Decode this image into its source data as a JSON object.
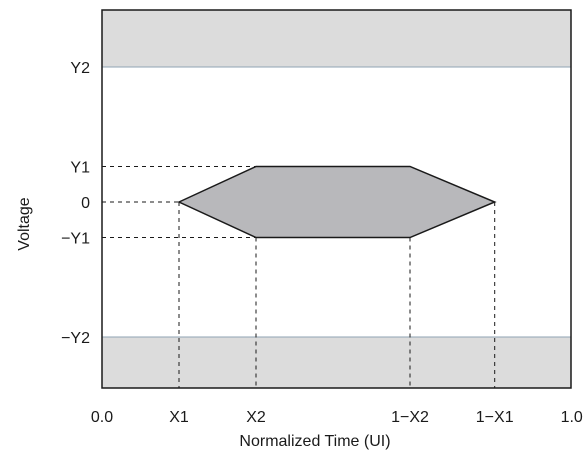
{
  "diagram": {
    "colors": {
      "frame": "#1a1a1a",
      "forbidden_band": "#dcdcdc",
      "band_edge": "#8fa3b3",
      "eye_mask": "#b8b8bb",
      "text": "#1a1a1a"
    },
    "axes": {
      "x_title": "Normalized Time (UI)",
      "y_title": "Voltage",
      "x_ticks": [
        {
          "label": "0.0",
          "t": 0.0
        },
        {
          "label": "X1",
          "t": 0.2
        },
        {
          "label": "X2",
          "t": 0.4
        },
        {
          "label": "1−X2",
          "t": 0.8
        },
        {
          "label": "1−X1",
          "t": 1.02
        },
        {
          "label": "1.0",
          "t": 1.22
        }
      ],
      "y_ticks": [
        {
          "label": "Y2",
          "v": 1.0
        },
        {
          "label": "Y1",
          "v": 0.263
        },
        {
          "label": "0",
          "v": 0.0
        },
        {
          "label": "−Y1",
          "v": -0.263
        },
        {
          "label": "−Y2",
          "v": -1.0
        }
      ]
    },
    "eye_mask": {
      "shape": "hexagon",
      "vertices": [
        {
          "t": 0.2,
          "v": 0.0
        },
        {
          "t": 0.4,
          "v": 0.263
        },
        {
          "t": 0.8,
          "v": 0.263
        },
        {
          "t": 1.02,
          "v": 0.0
        },
        {
          "t": 0.8,
          "v": -0.263
        },
        {
          "t": 0.4,
          "v": -0.263
        }
      ]
    }
  }
}
